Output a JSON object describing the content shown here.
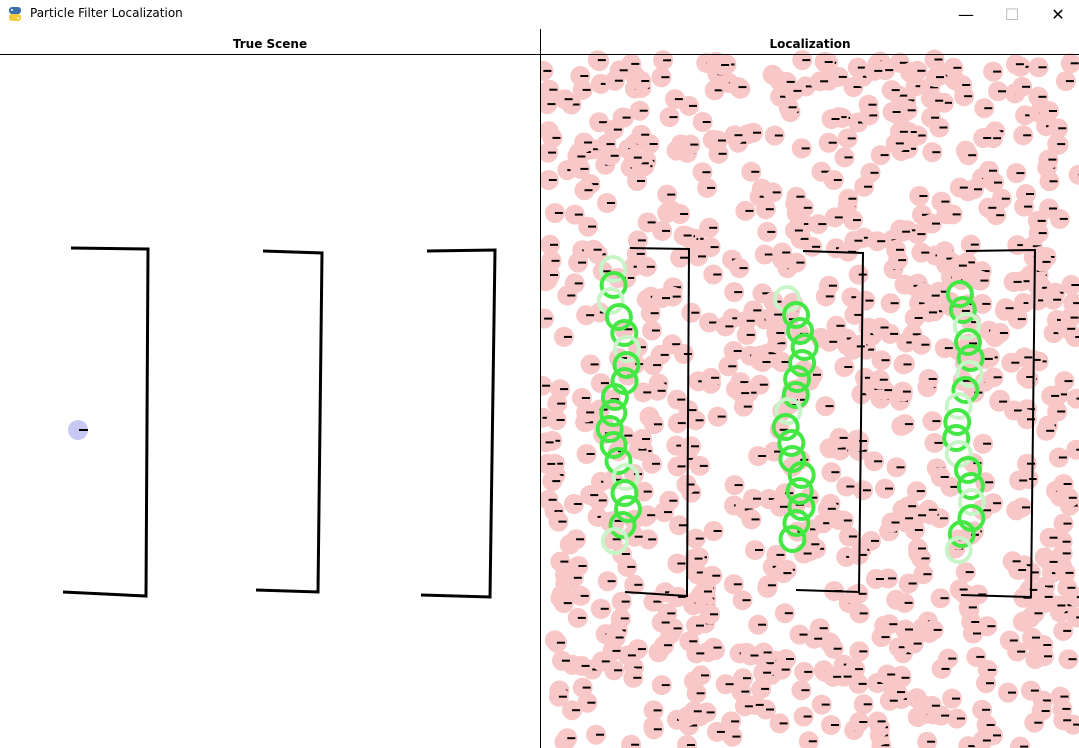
{
  "window": {
    "title": "Particle Filter Localization",
    "icon": "python-icon",
    "controls": [
      "minimize-icon",
      "maximize-icon",
      "close-icon"
    ]
  },
  "panels": {
    "true_scene": {
      "title": "True Scene"
    },
    "localization": {
      "title": "Localization"
    }
  },
  "colors": {
    "wall": "#000000",
    "robot": "#c8c8f5",
    "particle": "#f8c8c8",
    "estimate": "#44e844",
    "estimate_faint": "#c8f5c8"
  }
}
